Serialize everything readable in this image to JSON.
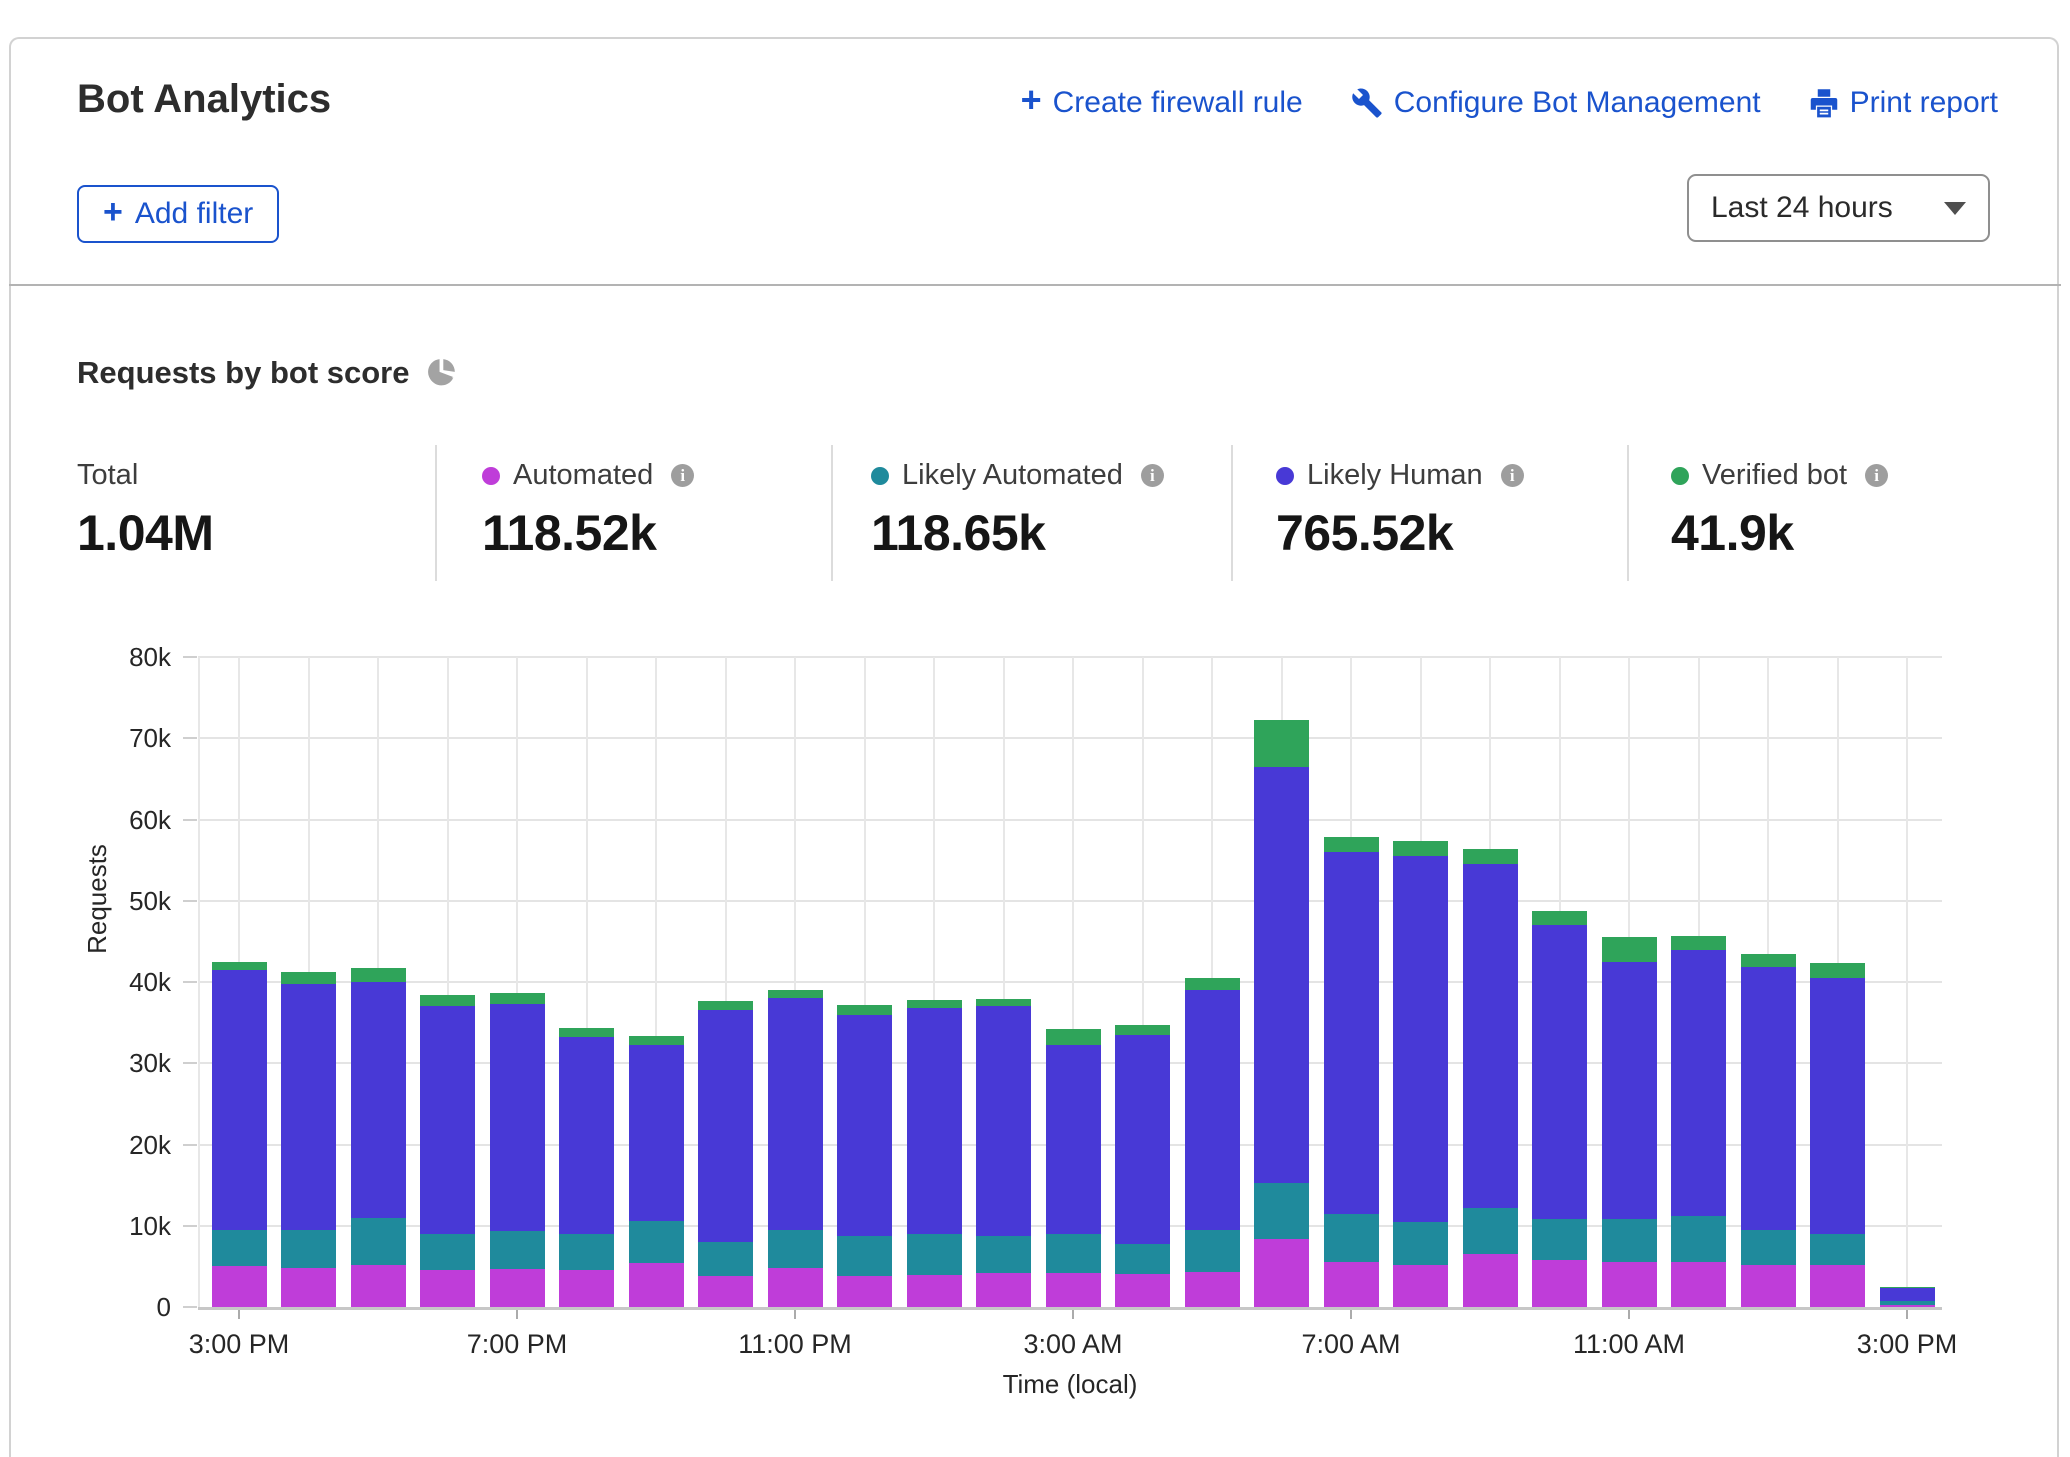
{
  "header": {
    "title": "Bot Analytics",
    "actions": [
      {
        "label": "Create firewall rule",
        "icon": "plus-icon"
      },
      {
        "label": "Configure Bot Management",
        "icon": "wrench-icon"
      },
      {
        "label": "Print report",
        "icon": "printer-icon"
      }
    ],
    "add_filter_label": "Add filter",
    "time_range": "Last 24 hours"
  },
  "section": {
    "title": "Requests by bot score"
  },
  "stats": [
    {
      "label": "Total",
      "value": "1.04M"
    },
    {
      "label": "Automated",
      "value": "118.52k",
      "color": "#bf3dd9"
    },
    {
      "label": "Likely Automated",
      "value": "118.65k",
      "color": "#1f8a9c"
    },
    {
      "label": "Likely Human",
      "value": "765.52k",
      "color": "#4839d6"
    },
    {
      "label": "Verified bot",
      "value": "41.9k",
      "color": "#2fa45a"
    }
  ],
  "colors": {
    "accent_blue": "#1a53cd",
    "grid": "#e4e4e4",
    "axis": "#c7c7c7"
  },
  "chart_data": {
    "type": "bar",
    "stacked": true,
    "title": "Requests by bot score",
    "xlabel": "Time (local)",
    "ylabel": "Requests",
    "ylim": [
      0,
      80000
    ],
    "bar_interval": "1 hour",
    "x_start": "3:00 PM",
    "x_end": "3:00 PM next day",
    "grid": true,
    "legend_position": "top stats row",
    "y_ticks": [
      "0",
      "10k",
      "20k",
      "30k",
      "40k",
      "50k",
      "60k",
      "70k",
      "80k"
    ],
    "x_tick_labels": [
      "3:00 PM",
      "7:00 PM",
      "11:00 PM",
      "3:00 AM",
      "7:00 AM",
      "11:00 AM",
      "3:00 PM"
    ],
    "x_tick_bar_indices": [
      0,
      4,
      8,
      12,
      16,
      20,
      24
    ],
    "series": [
      {
        "name": "Automated",
        "color": "#bf3dd9",
        "values": [
          5000,
          4800,
          5200,
          4500,
          4700,
          4500,
          5400,
          3800,
          4800,
          3800,
          4000,
          4200,
          4200,
          4100,
          4300,
          8400,
          5500,
          5200,
          6500,
          5800,
          5500,
          5500,
          5200,
          5200,
          300
        ]
      },
      {
        "name": "Likely Automated",
        "color": "#1f8a9c",
        "values": [
          4500,
          4700,
          5800,
          4500,
          4600,
          4500,
          5200,
          4200,
          4700,
          5000,
          5000,
          4500,
          4800,
          3700,
          5200,
          6900,
          6000,
          5300,
          5700,
          5000,
          5300,
          5700,
          4300,
          3800,
          400
        ]
      },
      {
        "name": "Likely Human",
        "color": "#4839d6",
        "values": [
          32000,
          30300,
          29000,
          28000,
          28000,
          24200,
          21700,
          28500,
          28500,
          27200,
          27800,
          28300,
          23300,
          25700,
          29500,
          51200,
          44500,
          45000,
          42300,
          36200,
          31700,
          32800,
          32300,
          31500,
          1700
        ]
      },
      {
        "name": "Verified bot",
        "color": "#2fa45a",
        "values": [
          1000,
          1400,
          1700,
          1400,
          1400,
          1100,
          1100,
          1200,
          1000,
          1200,
          1000,
          900,
          1900,
          1200,
          1500,
          5800,
          1800,
          1800,
          1900,
          1800,
          3100,
          1700,
          1600,
          1900,
          100
        ]
      }
    ]
  }
}
